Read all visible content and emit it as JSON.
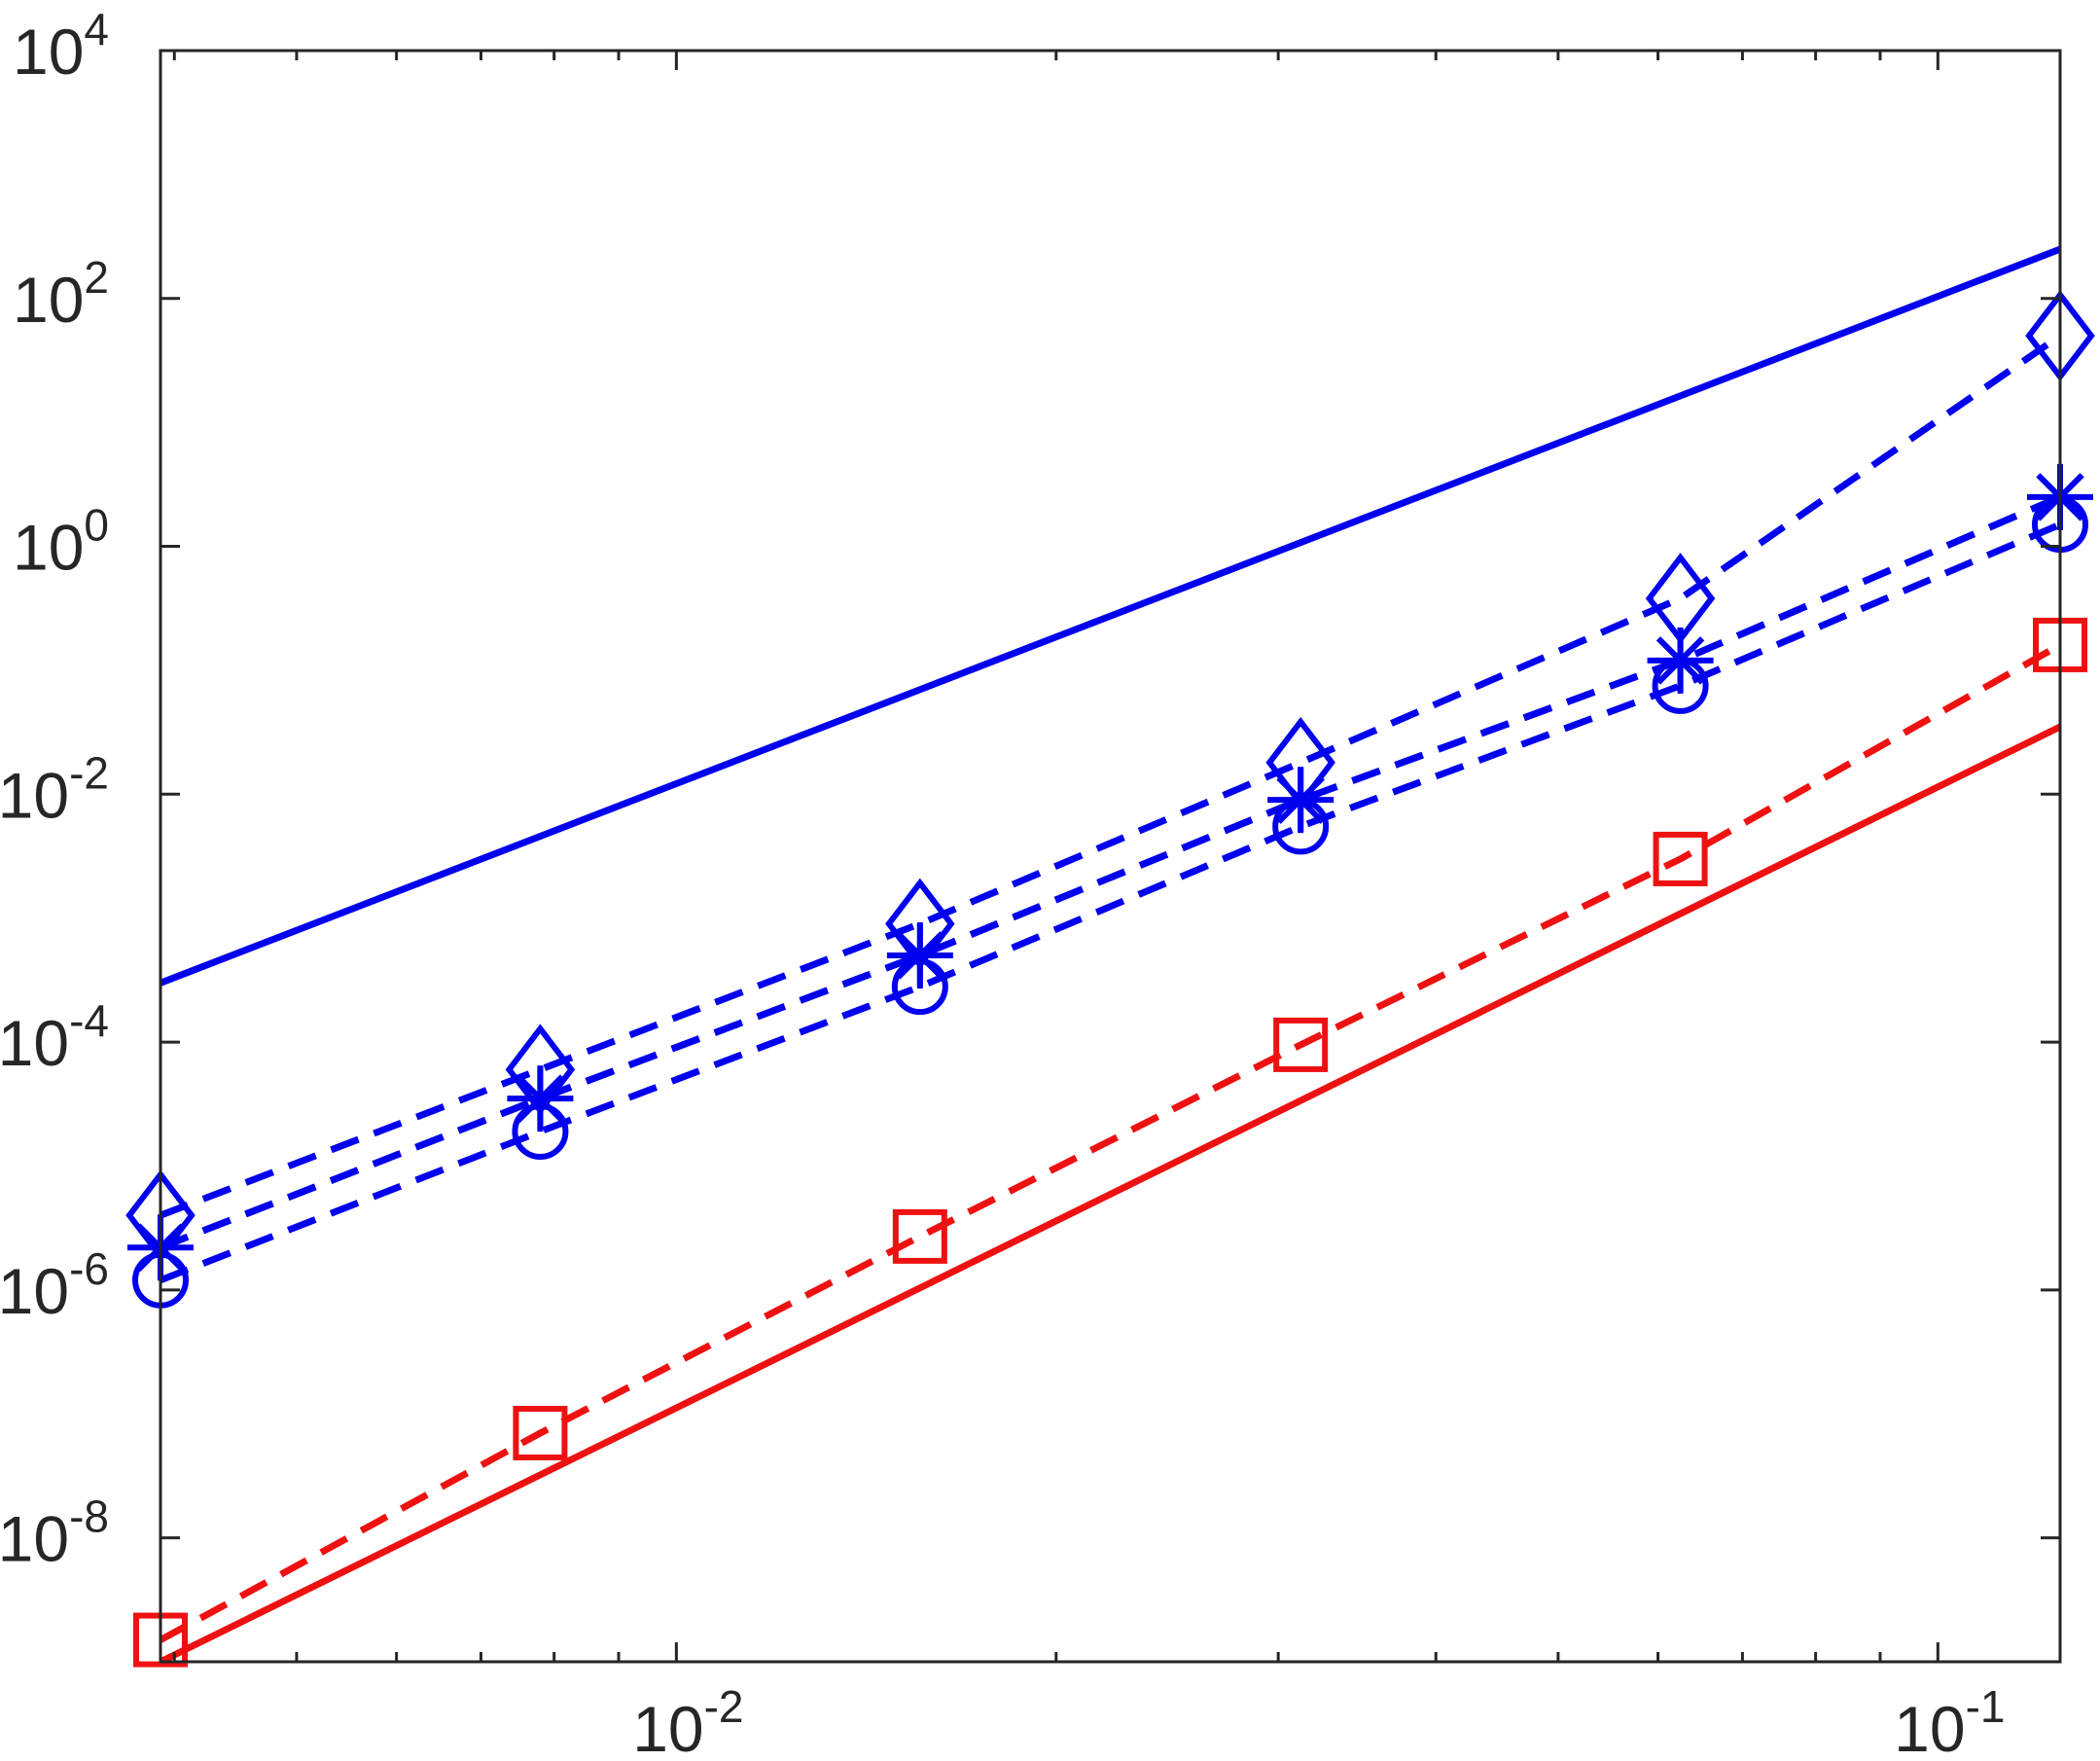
{
  "chart_data": {
    "type": "line",
    "xscale": "log",
    "yscale": "log",
    "xlim": [
      0.0039,
      0.125
    ],
    "ylim": [
      1e-09,
      10000
    ],
    "grid": false,
    "legend": "none",
    "x_ticks": [
      {
        "value": 0.01,
        "base": "10",
        "exp": "-2"
      },
      {
        "value": 0.1,
        "base": "10",
        "exp": "-1"
      }
    ],
    "y_ticks": [
      {
        "value": 1e-08,
        "base": "10",
        "exp": "-8"
      },
      {
        "value": 1e-06,
        "base": "10",
        "exp": "-6"
      },
      {
        "value": 0.0001,
        "base": "10",
        "exp": "-4"
      },
      {
        "value": 0.01,
        "base": "10",
        "exp": "-2"
      },
      {
        "value": 1,
        "base": "10",
        "exp": "0"
      },
      {
        "value": 100,
        "base": "10",
        "exp": "2"
      },
      {
        "value": 10000,
        "base": "10",
        "exp": "4"
      }
    ],
    "colors": {
      "blue": "#0000ee",
      "red": "#ee1111",
      "axis": "#262626"
    },
    "series": [
      {
        "color": "#0000ee",
        "style": "solid",
        "marker": "none",
        "x": [
          0.0039,
          0.125
        ],
        "y": [
          0.0003,
          250
        ]
      },
      {
        "color": "#0000ee",
        "style": "dashed",
        "marker": "diamond",
        "x": [
          0.0039,
          0.0078,
          0.0156,
          0.03125,
          0.0625,
          0.125
        ],
        "y": [
          4e-06,
          6e-05,
          0.0009,
          0.018,
          0.38,
          50
        ]
      },
      {
        "color": "#0000ee",
        "style": "dashed",
        "marker": "plus",
        "x": [
          0.0039,
          0.0078,
          0.0156,
          0.03125,
          0.0625,
          0.125
        ],
        "y": [
          2.2e-06,
          3.5e-05,
          0.0005,
          0.009,
          0.12,
          2.5
        ]
      },
      {
        "color": "#0000ee",
        "style": "dashed",
        "marker": "asterisk",
        "x": [
          0.0039,
          0.0078,
          0.0156,
          0.03125,
          0.0625,
          0.125
        ],
        "y": [
          2.2e-06,
          3.5e-05,
          0.0005,
          0.009,
          0.12,
          2.5
        ]
      },
      {
        "color": "#0000ee",
        "style": "dashed",
        "marker": "circle",
        "x": [
          0.0039,
          0.0078,
          0.0156,
          0.03125,
          0.0625,
          0.125
        ],
        "y": [
          1.2e-06,
          1.9e-05,
          0.00028,
          0.0055,
          0.075,
          1.5
        ]
      },
      {
        "color": "#ee1111",
        "style": "dashed",
        "marker": "square",
        "x": [
          0.0039,
          0.0078,
          0.0156,
          0.03125,
          0.0625,
          0.125
        ],
        "y": [
          1.5e-09,
          7e-08,
          2.7e-06,
          9.5e-05,
          0.003,
          0.16
        ]
      },
      {
        "color": "#ee1111",
        "style": "solid",
        "marker": "none",
        "x": [
          0.0039,
          0.125
        ],
        "y": [
          1e-09,
          0.035
        ]
      }
    ]
  }
}
